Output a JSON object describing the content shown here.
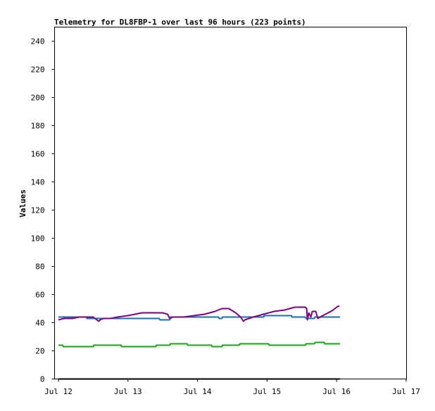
{
  "chart_data": {
    "type": "line",
    "title": "Telemetry for DL8FBP-1 over last 96 hours (223 points)",
    "xlabel": "",
    "ylabel": "Values",
    "xlim": [
      0,
      5
    ],
    "ylim": [
      0,
      250
    ],
    "x_ticks": [
      {
        "value": 0,
        "label": "Jul 12"
      },
      {
        "value": 1,
        "label": "Jul 13"
      },
      {
        "value": 2,
        "label": "Jul 14"
      },
      {
        "value": 3,
        "label": "Jul 15"
      },
      {
        "value": 4,
        "label": "Jul 16"
      },
      {
        "value": 5,
        "label": "Jul 17"
      }
    ],
    "y_ticks": [
      0,
      20,
      40,
      60,
      80,
      100,
      120,
      140,
      160,
      180,
      200,
      220,
      240
    ],
    "grid": false,
    "legend": "none",
    "series": [
      {
        "color": "#1a6fb0",
        "x": [
          0.0,
          0.4,
          0.41,
          1.0,
          1.45,
          1.46,
          1.6,
          1.61,
          2.3,
          2.31,
          2.35,
          2.36,
          2.95,
          2.96,
          3.35,
          3.36,
          3.55,
          3.56,
          3.68,
          3.69,
          3.72,
          3.73,
          4.05
        ],
        "values": [
          44,
          44,
          43,
          43,
          43,
          42,
          42,
          44,
          44,
          43,
          43,
          44,
          44,
          45,
          45,
          44,
          44,
          43,
          43,
          44,
          44,
          44,
          44
        ]
      },
      {
        "color": "#800080",
        "x": [
          0.0,
          0.08,
          0.2,
          0.3,
          0.5,
          0.58,
          0.6,
          0.65,
          0.75,
          0.85,
          1.0,
          1.1,
          1.2,
          1.35,
          1.5,
          1.57,
          1.6,
          1.65,
          1.8,
          1.95,
          2.1,
          2.25,
          2.35,
          2.45,
          2.55,
          2.62,
          2.66,
          2.68,
          2.8,
          2.95,
          3.1,
          3.25,
          3.4,
          3.5,
          3.55,
          3.57,
          3.58,
          3.6,
          3.63,
          3.65,
          3.7,
          3.73,
          3.8,
          3.88,
          3.95,
          4.0,
          4.04
        ],
        "values": [
          42,
          43,
          43,
          44,
          44,
          41,
          42,
          43,
          43,
          44,
          45,
          46,
          47,
          47,
          47,
          46,
          43,
          44,
          44,
          45,
          46,
          48,
          50,
          50,
          47,
          44,
          41,
          42,
          44,
          46,
          48,
          49,
          51,
          51,
          51,
          50,
          42,
          47,
          44,
          48,
          48,
          43,
          45,
          47,
          49,
          51,
          52
        ]
      },
      {
        "color": "#13a513",
        "x": [
          0.0,
          0.06,
          0.07,
          0.5,
          0.51,
          0.9,
          0.91,
          1.4,
          1.41,
          1.6,
          1.61,
          1.85,
          1.86,
          2.2,
          2.21,
          2.35,
          2.36,
          2.6,
          2.61,
          3.02,
          3.03,
          3.55,
          3.56,
          3.68,
          3.69,
          3.82,
          3.83,
          4.05
        ],
        "values": [
          24,
          24,
          23,
          23,
          24,
          24,
          23,
          23,
          24,
          24,
          25,
          25,
          24,
          24,
          23,
          23,
          24,
          24,
          25,
          25,
          24,
          24,
          25,
          25,
          26,
          26,
          25,
          25
        ]
      },
      {
        "color": "#000000",
        "x": [
          0.0,
          4.05
        ],
        "values": [
          0,
          0
        ]
      }
    ]
  }
}
